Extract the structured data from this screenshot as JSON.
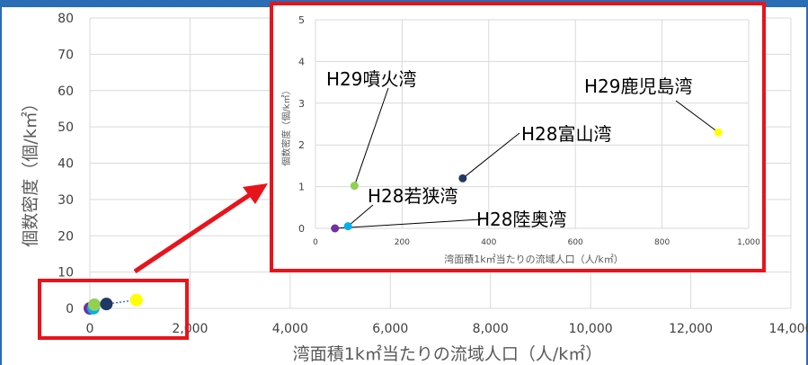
{
  "chart_data": [
    {
      "type": "scatter",
      "title": "",
      "xlabel": "湾面積1k㎡当たりの流域人口（人/k㎡）",
      "ylabel": "個数密度（個/k㎡）",
      "xlim": [
        0,
        14000
      ],
      "ylim": [
        0,
        80
      ],
      "x_ticks": [
        "0",
        "2,000",
        "4,000",
        "6,000",
        "8,000",
        "10,000",
        "12,000",
        "14,000"
      ],
      "y_ticks": [
        "0",
        "10",
        "20",
        "30",
        "40",
        "50",
        "60",
        "70",
        "80"
      ],
      "grid": true,
      "points": [
        {
          "x": 0,
          "y": 0.0,
          "color": "#7030a0"
        },
        {
          "x": 70,
          "y": 0.05,
          "color": "#00b0f0"
        },
        {
          "x": 90,
          "y": 1.0,
          "color": "#92d050"
        },
        {
          "x": 330,
          "y": 1.2,
          "color": "#1f3864"
        },
        {
          "x": 930,
          "y": 2.3,
          "color": "#ffff00"
        }
      ]
    },
    {
      "type": "scatter",
      "title": "",
      "xlabel": "湾面積1k㎡当たりの流域人口（人/k㎡）",
      "ylabel": "個数密度（個/k㎡）",
      "xlim": [
        0,
        1000
      ],
      "ylim": [
        0,
        5
      ],
      "x_ticks": [
        "0",
        "200",
        "400",
        "600",
        "800",
        "1,000"
      ],
      "y_ticks": [
        "0",
        "1",
        "2",
        "3",
        "4",
        "5"
      ],
      "grid": true,
      "points": [
        {
          "label": "H28陸奥湾",
          "x": 45,
          "y": 0.0,
          "color": "#7030a0"
        },
        {
          "label": "H28若狭湾",
          "x": 75,
          "y": 0.05,
          "color": "#00b0f0"
        },
        {
          "label": "H29噴火湾",
          "x": 90,
          "y": 1.02,
          "color": "#92d050"
        },
        {
          "label": "H28富山湾",
          "x": 340,
          "y": 1.2,
          "color": "#1f3864"
        },
        {
          "label": "H29鹿児島湾",
          "x": 930,
          "y": 2.3,
          "color": "#ffff00"
        }
      ]
    }
  ],
  "colors": {
    "accent_frame": "#e8141b",
    "header_bar": "#2a6cb5"
  }
}
